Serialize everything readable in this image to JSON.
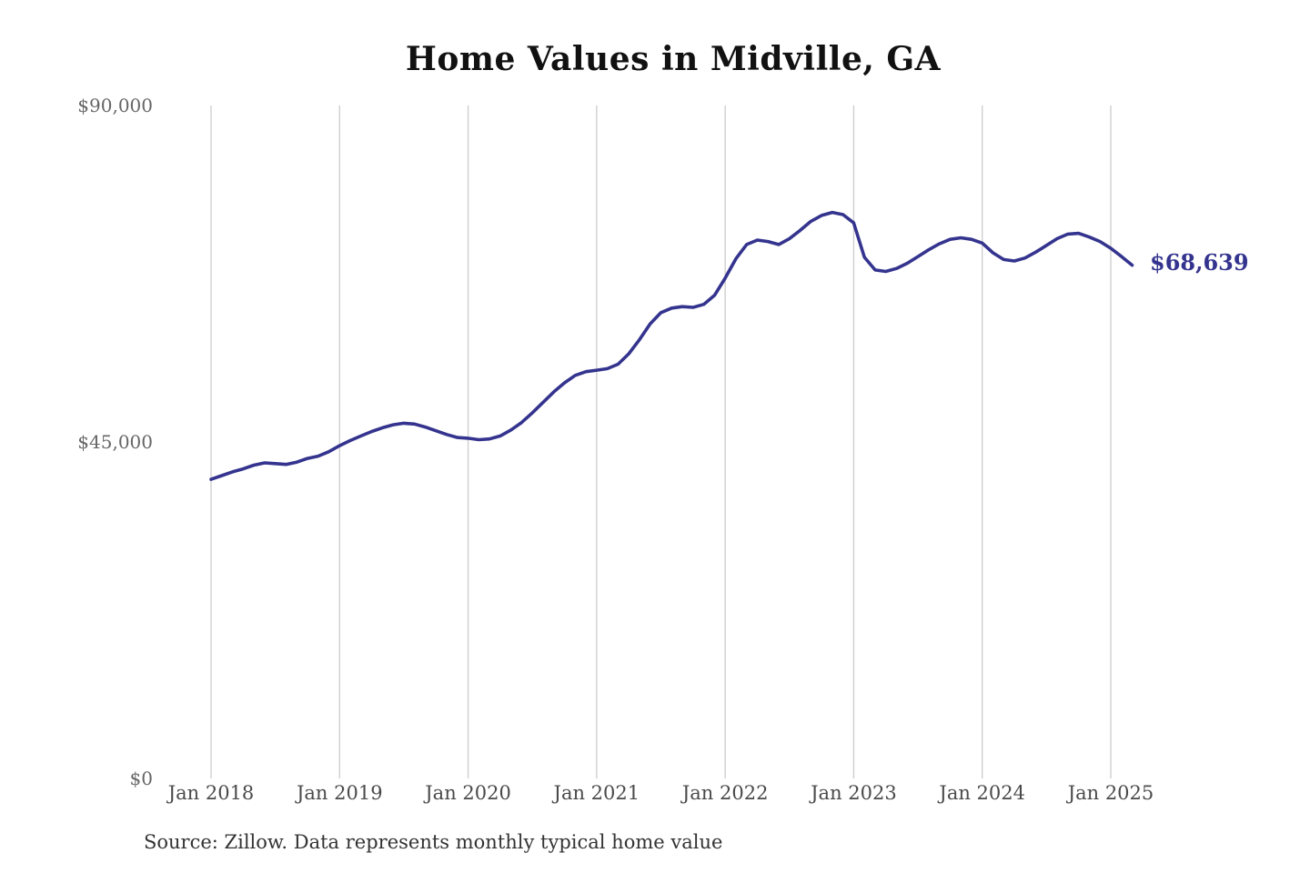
{
  "title": "Home Values in Midville, GA",
  "source_note": "Source: Zillow. Data represents monthly typical home value",
  "end_label": "$68,639",
  "colors": {
    "line": "#34348f",
    "grid": "#cccccc",
    "title_text": "#111111",
    "x_tick_text": "#4a4a4a",
    "y_tick_text": "#666666",
    "source_text": "#333333",
    "background": "#ffffff"
  },
  "chart_data": {
    "type": "line",
    "title": "Home Values in Midville, GA",
    "series_name": "Monthly typical home value",
    "frequency": "monthly",
    "start_month": "Jan 2018",
    "end_month": "Mar 2025",
    "values": [
      40000,
      40500,
      41000,
      41400,
      41900,
      42200,
      42100,
      42000,
      42300,
      42800,
      43100,
      43700,
      44500,
      45200,
      45800,
      46400,
      46900,
      47300,
      47500,
      47400,
      47000,
      46500,
      46000,
      45600,
      45500,
      45300,
      45400,
      45800,
      46600,
      47600,
      48900,
      50300,
      51700,
      52900,
      53900,
      54400,
      54600,
      54800,
      55400,
      56800,
      58700,
      60800,
      62300,
      62900,
      63100,
      63000,
      63400,
      64600,
      66900,
      69500,
      71400,
      72000,
      71800,
      71400,
      72200,
      73300,
      74500,
      75300,
      75700,
      75400,
      74300,
      69700,
      68000,
      67800,
      68200,
      68900,
      69800,
      70700,
      71500,
      72100,
      72300,
      72100,
      71600,
      70300,
      69400,
      69200,
      69600,
      70400,
      71300,
      72200,
      72800,
      72900,
      72400,
      71800,
      70900,
      69800,
      68639
    ],
    "x_tick_labels": [
      "Jan 2018",
      "Jan 2019",
      "Jan 2020",
      "Jan 2021",
      "Jan 2022",
      "Jan 2023",
      "Jan 2024",
      "Jan 2025"
    ],
    "y_ticks": [
      {
        "label": "$0",
        "value": 0
      },
      {
        "label": "$45,000",
        "value": 45000
      },
      {
        "label": "$90,000",
        "value": 90000
      }
    ],
    "ylim": [
      0,
      90000
    ],
    "grid": "vertical-only",
    "legend": "none",
    "end_annotation": {
      "label": "$68,639",
      "value": 68639
    }
  }
}
